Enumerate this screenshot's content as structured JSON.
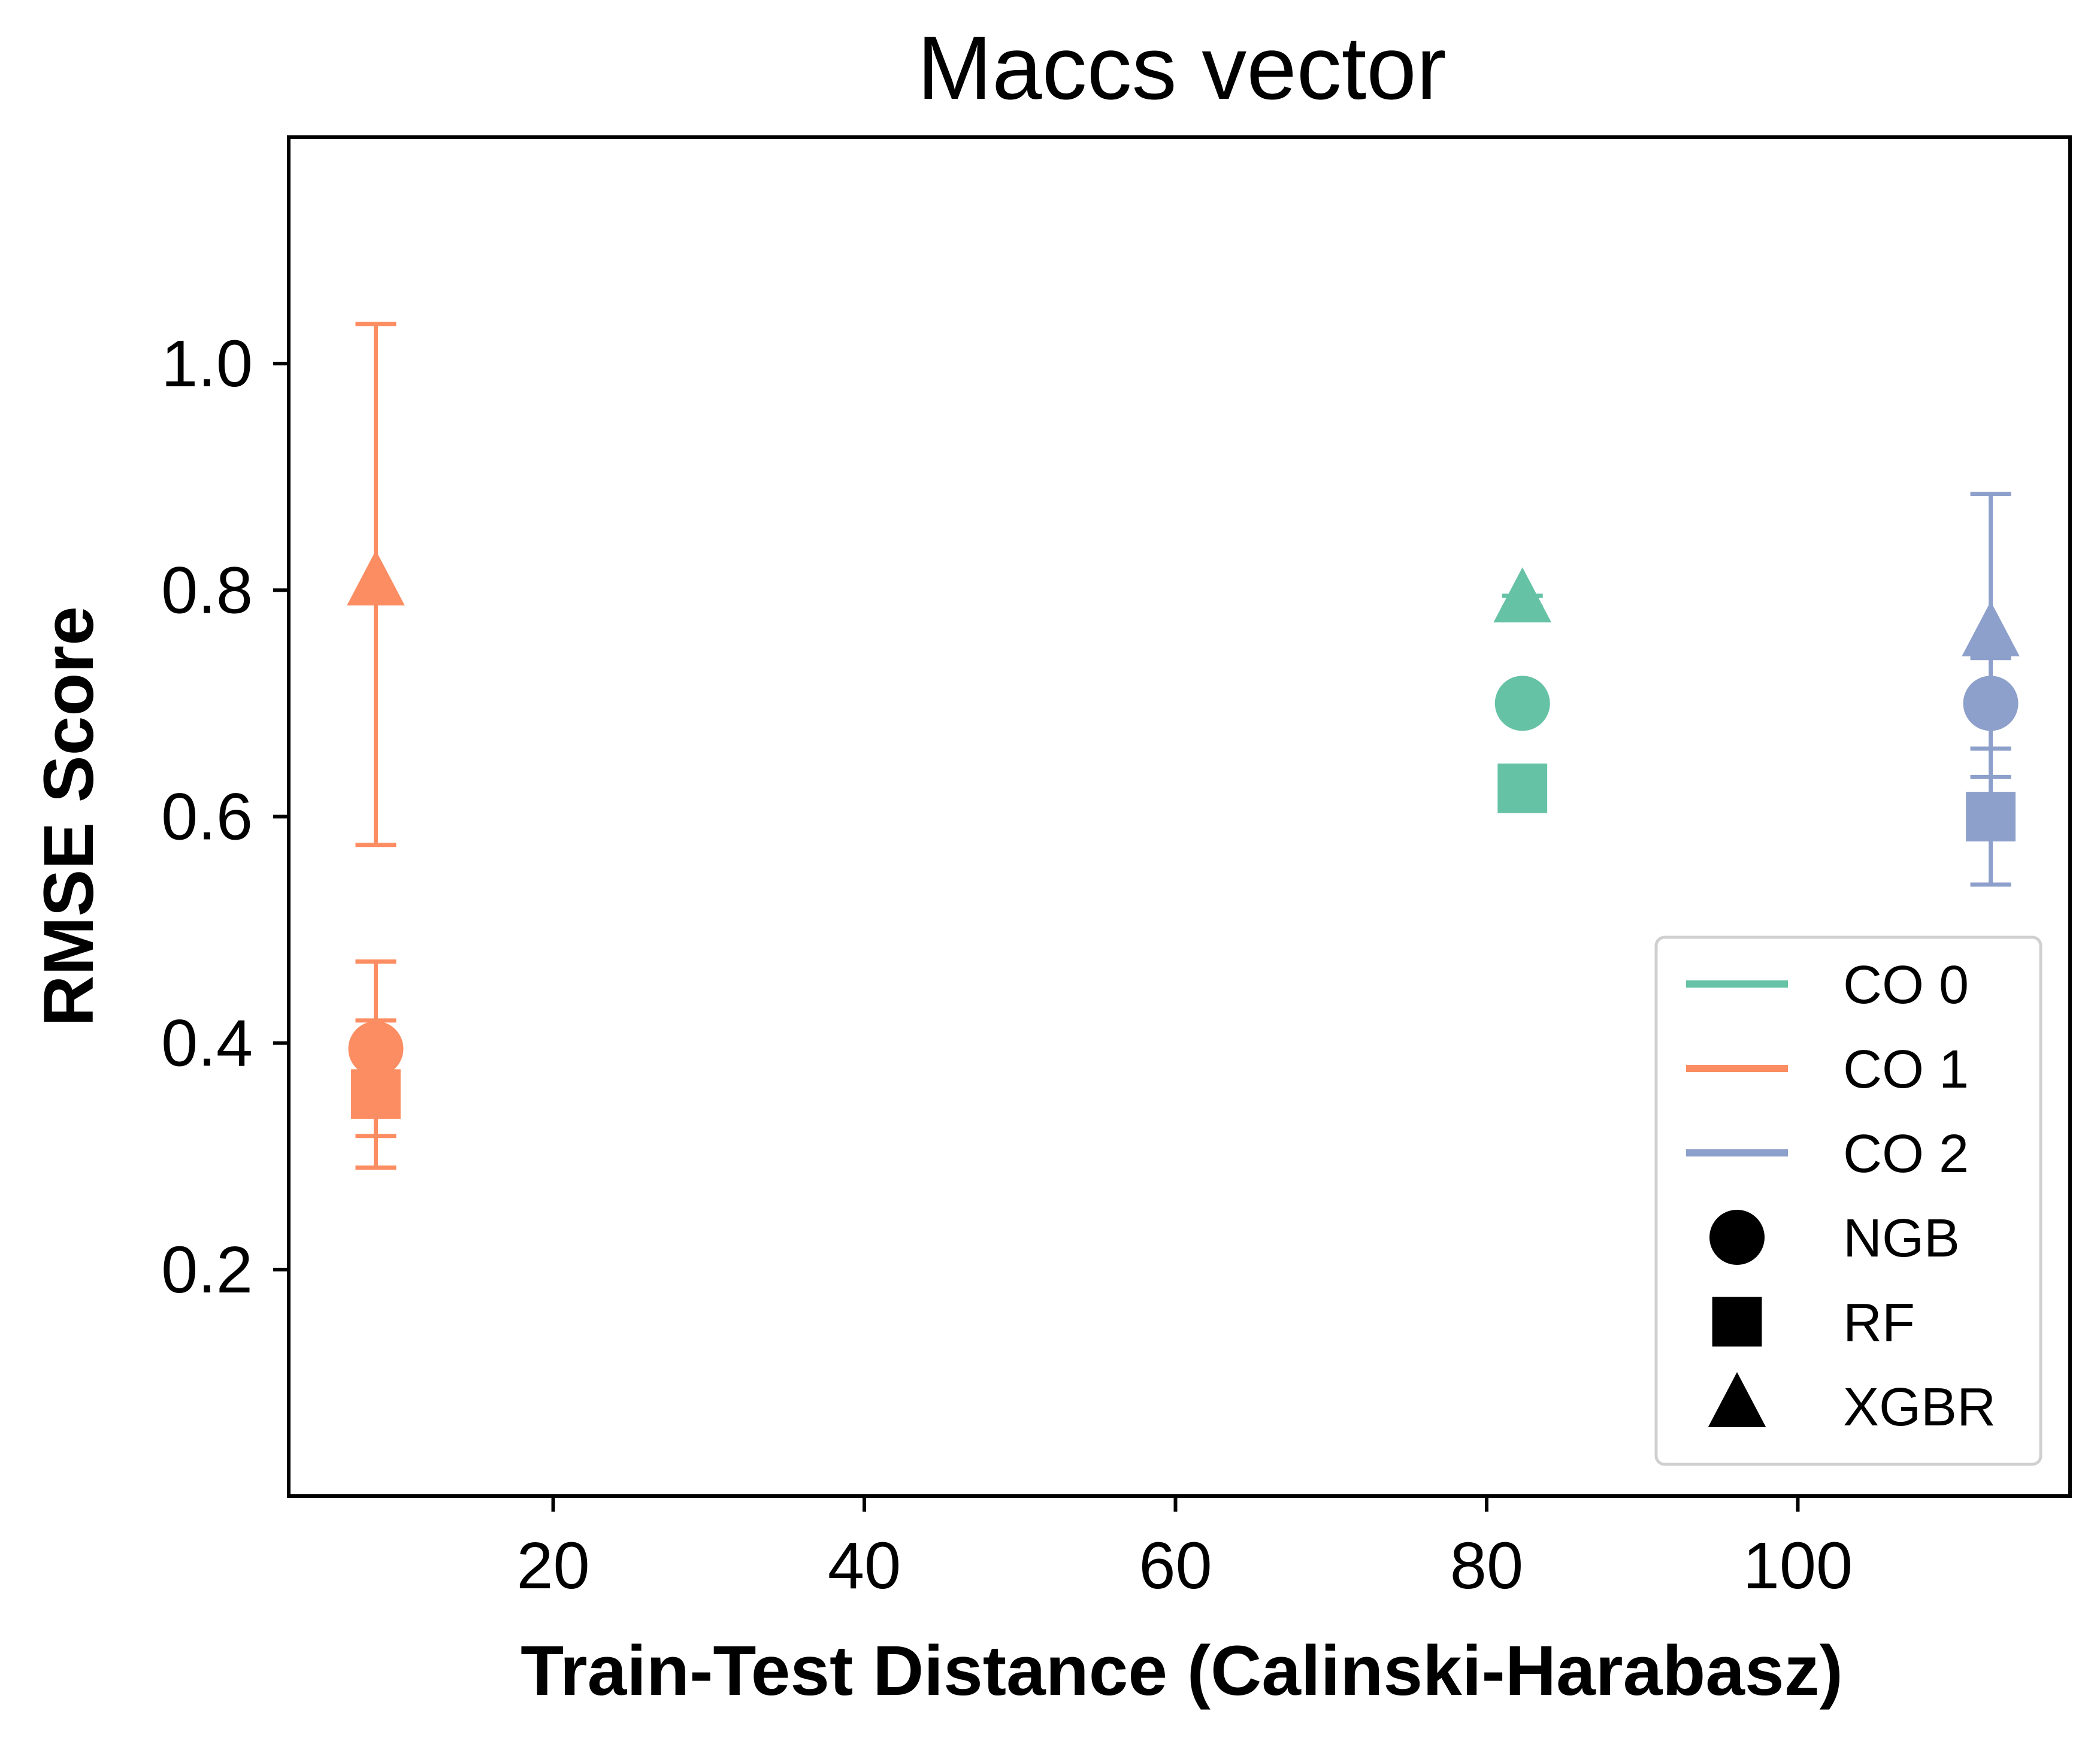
{
  "chart_data": {
    "type": "scatter",
    "title": "Maccs vector",
    "xlabel": "Train-Test Distance (Calinski-Harabasz)",
    "ylabel": "RMSE Score",
    "xlim": [
      3.0,
      117.5
    ],
    "ylim": [
      0.0,
      1.2
    ],
    "xticks": [
      20,
      40,
      60,
      80,
      100
    ],
    "yticks": [
      0.2,
      0.4,
      0.6,
      0.8,
      1.0
    ],
    "ytick_labels": [
      "0.2",
      "0.4",
      "0.6",
      "0.8",
      "1.0"
    ],
    "grid": false,
    "legend": {
      "location": "lower right",
      "color_entries": [
        {
          "label": "CO 0",
          "color": "#66c2a5"
        },
        {
          "label": "CO 1",
          "color": "#fc8d62"
        },
        {
          "label": "CO 2",
          "color": "#8da0cb"
        }
      ],
      "marker_entries": [
        {
          "label": "NGB",
          "marker": "circle"
        },
        {
          "label": "RF",
          "marker": "square"
        },
        {
          "label": "XGBR",
          "marker": "triangle"
        }
      ]
    },
    "series": [
      {
        "group": "CO 0",
        "model": "NGB",
        "marker": "circle",
        "color": "#66c2a5",
        "x": 82.3,
        "y": 0.7,
        "err_low": 0.7,
        "err_high": 0.7
      },
      {
        "group": "CO 0",
        "model": "RF",
        "marker": "square",
        "color": "#66c2a5",
        "x": 82.3,
        "y": 0.625,
        "err_low": 0.625,
        "err_high": 0.625
      },
      {
        "group": "CO 0",
        "model": "XGBR",
        "marker": "triangle",
        "color": "#66c2a5",
        "x": 82.3,
        "y": 0.79,
        "err_low": 0.785,
        "err_high": 0.795
      },
      {
        "group": "CO 1",
        "model": "NGB",
        "marker": "circle",
        "color": "#fc8d62",
        "x": 8.6,
        "y": 0.395,
        "err_low": 0.318,
        "err_high": 0.472
      },
      {
        "group": "CO 1",
        "model": "RF",
        "marker": "square",
        "color": "#fc8d62",
        "x": 8.6,
        "y": 0.355,
        "err_low": 0.29,
        "err_high": 0.42
      },
      {
        "group": "CO 1",
        "model": "XGBR",
        "marker": "triangle",
        "color": "#fc8d62",
        "x": 8.6,
        "y": 0.805,
        "err_low": 0.575,
        "err_high": 1.035
      },
      {
        "group": "CO 2",
        "model": "NGB",
        "marker": "circle",
        "color": "#8da0cb",
        "x": 112.4,
        "y": 0.7,
        "err_low": 0.66,
        "err_high": 0.74
      },
      {
        "group": "CO 2",
        "model": "RF",
        "marker": "square",
        "color": "#8da0cb",
        "x": 112.4,
        "y": 0.6,
        "err_low": 0.54,
        "err_high": 0.66
      },
      {
        "group": "CO 2",
        "model": "XGBR",
        "marker": "triangle",
        "color": "#8da0cb",
        "x": 112.4,
        "y": 0.76,
        "err_low": 0.635,
        "err_high": 0.885
      }
    ]
  }
}
